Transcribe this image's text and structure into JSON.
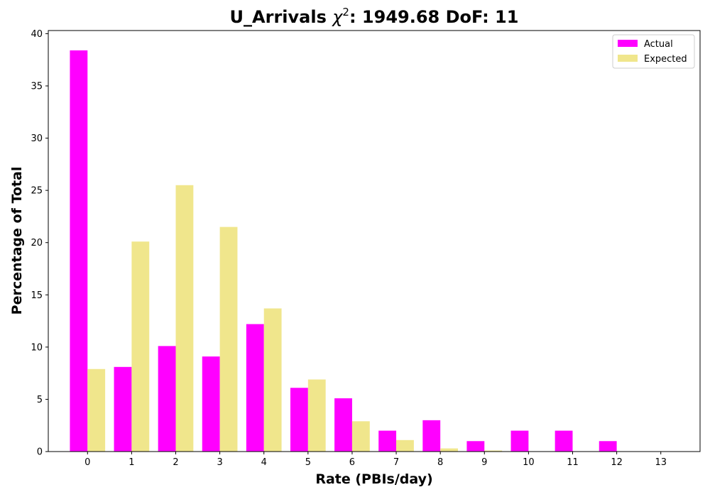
{
  "chart_data": {
    "type": "bar",
    "title_prefix": "U_Arrivals ",
    "title_chi": "χ",
    "title_sup": "2",
    "title_suffix": ": 1949.68 DoF: 11",
    "xlabel": "Rate (PBIs/day)",
    "ylabel": "Percentage of Total",
    "categories": [
      "0",
      "1",
      "2",
      "3",
      "4",
      "5",
      "6",
      "7",
      "8",
      "9",
      "10",
      "11",
      "12",
      "13"
    ],
    "series": [
      {
        "name": "Actual",
        "color": "#ff00ff",
        "values": [
          38.4,
          8.1,
          10.1,
          9.1,
          12.2,
          6.1,
          5.1,
          2.0,
          3.0,
          1.0,
          2.0,
          2.0,
          1.0,
          0.0
        ]
      },
      {
        "name": "Expected",
        "color": "#f0e68c",
        "values": [
          7.9,
          20.1,
          25.5,
          21.5,
          13.7,
          6.9,
          2.9,
          1.1,
          0.3,
          0.1,
          0.03,
          0.01,
          0.0,
          0.0
        ]
      }
    ],
    "ylim": [
      0,
      40.3
    ],
    "yticks": [
      0,
      5,
      10,
      15,
      20,
      25,
      30,
      35,
      40
    ],
    "legend_position": "top-right",
    "grid": false
  }
}
